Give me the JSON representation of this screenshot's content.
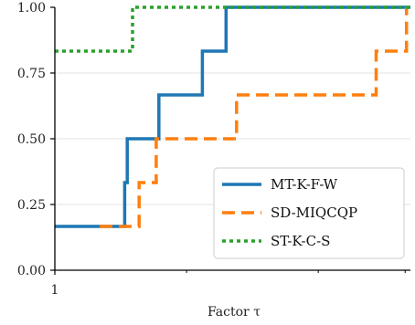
{
  "chart_data": {
    "type": "line",
    "step": true,
    "xlabel": "Factor τ",
    "ylabel": "",
    "title": "",
    "xlim": [
      1,
      2.35
    ],
    "ylim": [
      0,
      1
    ],
    "x_tick_labels": [
      {
        "value": 1,
        "label": "1"
      }
    ],
    "x_minor_ticks": [
      1.5,
      2.0,
      2.33
    ],
    "y_ticks": [
      {
        "value": 0.0,
        "label": "0.00"
      },
      {
        "value": 0.25,
        "label": "0.25"
      },
      {
        "value": 0.5,
        "label": "0.50"
      },
      {
        "value": 0.75,
        "label": "0.75"
      },
      {
        "value": 1.0,
        "label": "1.00"
      }
    ],
    "grid": "horizontal",
    "legend_position": "lower-right",
    "series": [
      {
        "name": "MT-K-F-W",
        "color": "#1f77b4",
        "dash": "solid",
        "points": [
          [
            1.0,
            0.1667
          ],
          [
            1.265,
            0.1667
          ],
          [
            1.265,
            0.3333
          ],
          [
            1.275,
            0.3333
          ],
          [
            1.275,
            0.5
          ],
          [
            1.395,
            0.5
          ],
          [
            1.395,
            0.6667
          ],
          [
            1.56,
            0.6667
          ],
          [
            1.56,
            0.8333
          ],
          [
            1.65,
            0.8333
          ],
          [
            1.65,
            1.0
          ],
          [
            2.35,
            1.0
          ]
        ]
      },
      {
        "name": "SD-MIQCQP",
        "color": "#ff7f0e",
        "dash": "dashed",
        "points": [
          [
            1.17,
            0.1667
          ],
          [
            1.32,
            0.1667
          ],
          [
            1.32,
            0.3333
          ],
          [
            1.385,
            0.3333
          ],
          [
            1.385,
            0.5
          ],
          [
            1.69,
            0.5
          ],
          [
            1.69,
            0.6667
          ],
          [
            2.22,
            0.6667
          ],
          [
            2.22,
            0.8333
          ],
          [
            2.335,
            0.8333
          ],
          [
            2.335,
            1.0
          ]
        ]
      },
      {
        "name": "ST-K-C-S",
        "color": "#2ca02c",
        "dash": "dotted",
        "points": [
          [
            1.0,
            0.8333
          ],
          [
            1.295,
            0.8333
          ],
          [
            1.295,
            1.0
          ],
          [
            2.35,
            1.0
          ]
        ]
      }
    ]
  }
}
